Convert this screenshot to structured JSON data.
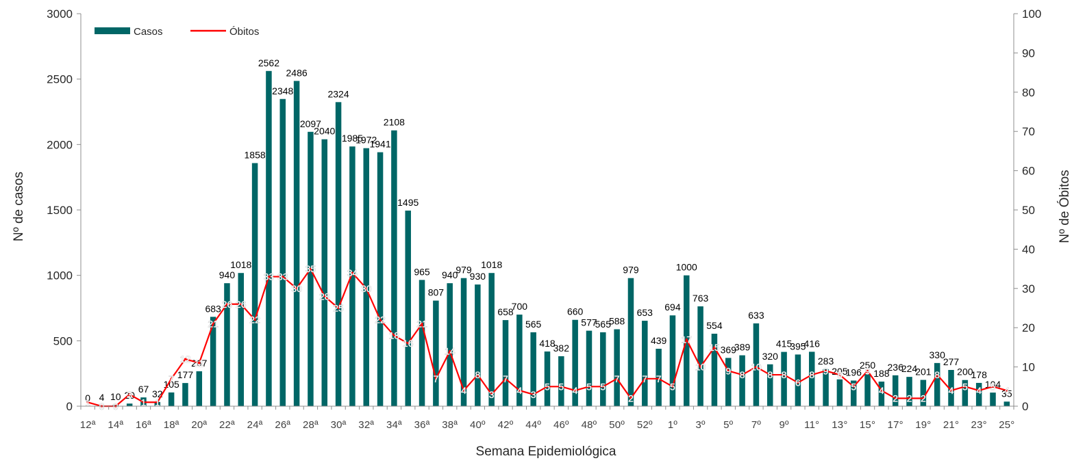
{
  "chart_data": {
    "type": "bar",
    "xlabel": "Semana Epidemiológica",
    "ylabel": "Nº de casos",
    "y2label": "Nº de Óbitos",
    "ylim": [
      0,
      3000
    ],
    "y2lim": [
      0,
      100
    ],
    "yticks": [
      "0",
      "500",
      "1000",
      "1500",
      "2000",
      "2500",
      "3000"
    ],
    "y2ticks": [
      "0",
      "10",
      "20",
      "30",
      "40",
      "50",
      "60",
      "70",
      "80",
      "90",
      "100"
    ],
    "legend_position": "top-left",
    "categories": [
      "12ª",
      "13ª",
      "14ª",
      "15ª",
      "16ª",
      "17ª",
      "18ª",
      "19ª",
      "20ª",
      "21ª",
      "22ª",
      "23ª",
      "24ª",
      "25ª",
      "26ª",
      "27ª",
      "28ª",
      "29ª",
      "30ª",
      "31ª",
      "32ª",
      "33ª",
      "34ª",
      "35ª",
      "36ª",
      "37ª",
      "38ª",
      "39ª",
      "40º",
      "41º",
      "42º",
      "43º",
      "44º",
      "45º",
      "46º",
      "47º",
      "48º",
      "49º",
      "50º",
      "51º",
      "52º",
      "53º",
      "1º",
      "2º",
      "3º",
      "4º",
      "5º",
      "6º",
      "7º",
      "8º",
      "9º",
      "10º",
      "11°",
      "12°",
      "13°",
      "14°",
      "15°",
      "16°",
      "17°",
      "18°",
      "19°",
      "20°",
      "21°",
      "22°",
      "23°",
      "24°",
      "25°"
    ],
    "shown_tick_labels": [
      "12ª",
      "14ª",
      "16ª",
      "18ª",
      "20ª",
      "22ª",
      "24ª",
      "26ª",
      "28ª",
      "30ª",
      "32ª",
      "34ª",
      "36ª",
      "38ª",
      "40º",
      "42º",
      "44º",
      "46º",
      "48º",
      "50º",
      "52º",
      "1º",
      "3º",
      "5º",
      "7º",
      "9º",
      "11°",
      "13°",
      "15°",
      "17°",
      "19°",
      "21°",
      "23°",
      "25°"
    ],
    "series": [
      {
        "name": "Casos",
        "kind": "bar",
        "axis": "left",
        "color": "#006666",
        "values": [
          0,
          4,
          10,
          20,
          67,
          32,
          105,
          177,
          267,
          683,
          940,
          1018,
          1858,
          2562,
          2348,
          2486,
          2097,
          2040,
          2324,
          1985,
          1972,
          1941,
          2108,
          1495,
          965,
          807,
          940,
          979,
          930,
          1018,
          658,
          700,
          565,
          418,
          382,
          660,
          577,
          565,
          588,
          979,
          653,
          439,
          694,
          1000,
          763,
          554,
          369,
          389,
          633,
          320,
          415,
          395,
          416,
          283,
          205,
          196,
          250,
          188,
          236,
          224,
          201,
          330,
          277,
          200,
          178,
          104,
          35
        ]
      },
      {
        "name": "Óbitos",
        "kind": "line",
        "axis": "right",
        "color": "#ff0000",
        "values": [
          1,
          0,
          0,
          3,
          1,
          1,
          7,
          12,
          11,
          21,
          26,
          26,
          22,
          33,
          33,
          30,
          35,
          28,
          25,
          34,
          30,
          22,
          18,
          16,
          21,
          7,
          14,
          4,
          8,
          3,
          7,
          4,
          3,
          5,
          5,
          4,
          5,
          5,
          7,
          2,
          7,
          7,
          5,
          17,
          10,
          15,
          9,
          8,
          10,
          8,
          8,
          6,
          8,
          9,
          8,
          5,
          9,
          4,
          2,
          2,
          2,
          8,
          4,
          5,
          4,
          5,
          4
        ]
      }
    ]
  }
}
